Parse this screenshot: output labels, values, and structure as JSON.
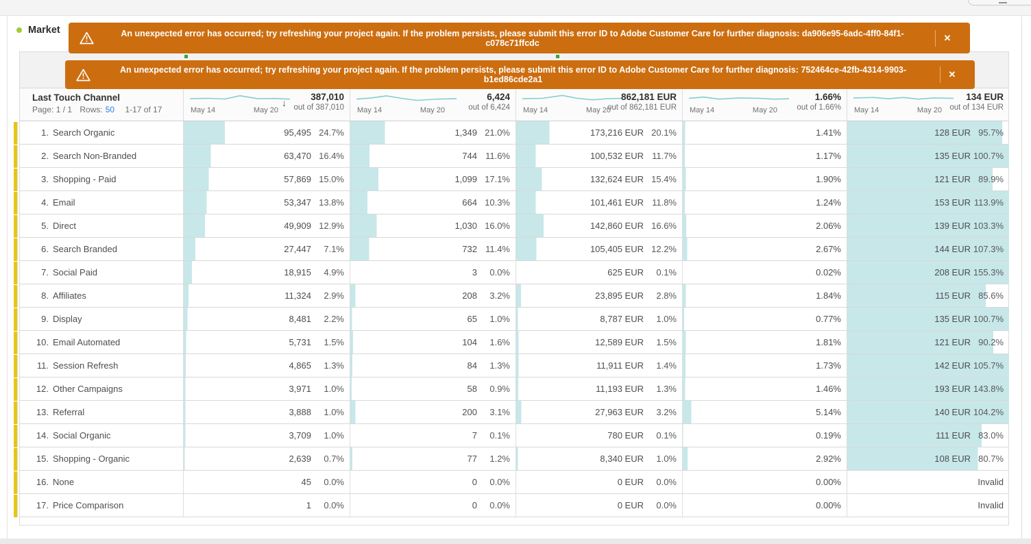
{
  "colors": {
    "banner_orange": "#cc6e10",
    "bar_teal": "#c7e7e9",
    "sparkline_teal": "#7fcfd4",
    "row_accent_yellow": "#e5c713",
    "link_blue": "#2680eb",
    "panel_dot_green": "#a4c93f"
  },
  "panel": {
    "title": "Market"
  },
  "banners": [
    {
      "message": "An unexpected error has occurred; try refreshing your project again. If the problem persists, please submit this error ID to Adobe Customer Care for further diagnosis: da906e95-6adc-4ff0-84f1-c078c71ffcdc",
      "close_label": "✕"
    },
    {
      "message": "An unexpected error has occurred; try refreshing your project again. If the problem persists, please submit this error ID to Adobe Customer Care for further diagnosis: 752464ce-42fb-4314-9903-b1ed86cde2a1",
      "close_label": "✕"
    }
  ],
  "table": {
    "dimension_header": {
      "title": "Last Touch Channel",
      "page_label": "Page: 1 / 1",
      "rows_label": "Rows:",
      "rows_value": "50",
      "range_label": "1-17 of 17"
    },
    "date_range": {
      "start": "May 14",
      "end": "May 20"
    },
    "columns": [
      {
        "total": "387,010",
        "out_of": "out of 387,010",
        "sorted": true,
        "spark": [
          [
            0,
            0.55
          ],
          [
            0.18,
            0.5
          ],
          [
            0.35,
            0.58
          ],
          [
            0.5,
            0.18
          ],
          [
            0.68,
            0.55
          ],
          [
            0.85,
            0.52
          ],
          [
            1,
            0.6
          ]
        ]
      },
      {
        "total": "6,424",
        "out_of": "out of 6,424",
        "sorted": false,
        "spark": [
          [
            0,
            0.6
          ],
          [
            0.15,
            0.45
          ],
          [
            0.3,
            0.2
          ],
          [
            0.45,
            0.5
          ],
          [
            0.6,
            0.75
          ],
          [
            0.8,
            0.6
          ],
          [
            1,
            0.55
          ]
        ]
      },
      {
        "total": "862,181 EUR",
        "out_of": "out of 862,181 EUR",
        "sorted": false,
        "spark": [
          [
            0,
            0.55
          ],
          [
            0.2,
            0.5
          ],
          [
            0.4,
            0.15
          ],
          [
            0.55,
            0.5
          ],
          [
            0.7,
            0.68
          ],
          [
            0.85,
            0.55
          ],
          [
            1,
            0.5
          ]
        ]
      },
      {
        "total": "1.66%",
        "out_of": "out of 1.66%",
        "sorted": false,
        "spark": [
          [
            0,
            0.5
          ],
          [
            0.15,
            0.35
          ],
          [
            0.3,
            0.6
          ],
          [
            0.5,
            0.45
          ],
          [
            0.7,
            0.5
          ],
          [
            0.85,
            0.6
          ],
          [
            1,
            0.55
          ]
        ]
      },
      {
        "total": "134 EUR",
        "out_of": "out of 134 EUR",
        "sorted": false,
        "spark": [
          [
            0,
            0.45
          ],
          [
            0.2,
            0.4
          ],
          [
            0.35,
            0.55
          ],
          [
            0.5,
            0.4
          ],
          [
            0.65,
            0.6
          ],
          [
            0.8,
            0.45
          ],
          [
            1,
            0.5
          ]
        ]
      }
    ],
    "rows": [
      {
        "rank": "1.",
        "name": "Search Organic",
        "cells": [
          [
            "95,495",
            "24.7%"
          ],
          [
            "1,349",
            "21.0%"
          ],
          [
            "173,216 EUR",
            "20.1%"
          ],
          [
            "1.41%",
            null
          ],
          [
            "128 EUR",
            "95.7%"
          ]
        ]
      },
      {
        "rank": "2.",
        "name": "Search Non-Branded",
        "cells": [
          [
            "63,470",
            "16.4%"
          ],
          [
            "744",
            "11.6%"
          ],
          [
            "100,532 EUR",
            "11.7%"
          ],
          [
            "1.17%",
            null
          ],
          [
            "135 EUR",
            "100.7%"
          ]
        ]
      },
      {
        "rank": "3.",
        "name": "Shopping - Paid",
        "cells": [
          [
            "57,869",
            "15.0%"
          ],
          [
            "1,099",
            "17.1%"
          ],
          [
            "132,624 EUR",
            "15.4%"
          ],
          [
            "1.90%",
            null
          ],
          [
            "121 EUR",
            "89.9%"
          ]
        ]
      },
      {
        "rank": "4.",
        "name": "Email",
        "cells": [
          [
            "53,347",
            "13.8%"
          ],
          [
            "664",
            "10.3%"
          ],
          [
            "101,461 EUR",
            "11.8%"
          ],
          [
            "1.24%",
            null
          ],
          [
            "153 EUR",
            "113.9%"
          ]
        ]
      },
      {
        "rank": "5.",
        "name": "Direct",
        "cells": [
          [
            "49,909",
            "12.9%"
          ],
          [
            "1,030",
            "16.0%"
          ],
          [
            "142,860 EUR",
            "16.6%"
          ],
          [
            "2.06%",
            null
          ],
          [
            "139 EUR",
            "103.3%"
          ]
        ]
      },
      {
        "rank": "6.",
        "name": "Search Branded",
        "cells": [
          [
            "27,447",
            "7.1%"
          ],
          [
            "732",
            "11.4%"
          ],
          [
            "105,405 EUR",
            "12.2%"
          ],
          [
            "2.67%",
            null
          ],
          [
            "144 EUR",
            "107.3%"
          ]
        ]
      },
      {
        "rank": "7.",
        "name": "Social Paid",
        "cells": [
          [
            "18,915",
            "4.9%"
          ],
          [
            "3",
            "0.0%"
          ],
          [
            "625 EUR",
            "0.1%"
          ],
          [
            "0.02%",
            null
          ],
          [
            "208 EUR",
            "155.3%"
          ]
        ]
      },
      {
        "rank": "8.",
        "name": "Affiliates",
        "cells": [
          [
            "11,324",
            "2.9%"
          ],
          [
            "208",
            "3.2%"
          ],
          [
            "23,895 EUR",
            "2.8%"
          ],
          [
            "1.84%",
            null
          ],
          [
            "115 EUR",
            "85.6%"
          ]
        ]
      },
      {
        "rank": "9.",
        "name": "Display",
        "cells": [
          [
            "8,481",
            "2.2%"
          ],
          [
            "65",
            "1.0%"
          ],
          [
            "8,787 EUR",
            "1.0%"
          ],
          [
            "0.77%",
            null
          ],
          [
            "135 EUR",
            "100.7%"
          ]
        ]
      },
      {
        "rank": "10.",
        "name": "Email Automated",
        "cells": [
          [
            "5,731",
            "1.5%"
          ],
          [
            "104",
            "1.6%"
          ],
          [
            "12,589 EUR",
            "1.5%"
          ],
          [
            "1.81%",
            null
          ],
          [
            "121 EUR",
            "90.2%"
          ]
        ]
      },
      {
        "rank": "11.",
        "name": "Session Refresh",
        "cells": [
          [
            "4,865",
            "1.3%"
          ],
          [
            "84",
            "1.3%"
          ],
          [
            "11,911 EUR",
            "1.4%"
          ],
          [
            "1.73%",
            null
          ],
          [
            "142 EUR",
            "105.7%"
          ]
        ]
      },
      {
        "rank": "12.",
        "name": "Other Campaigns",
        "cells": [
          [
            "3,971",
            "1.0%"
          ],
          [
            "58",
            "0.9%"
          ],
          [
            "11,193 EUR",
            "1.3%"
          ],
          [
            "1.46%",
            null
          ],
          [
            "193 EUR",
            "143.8%"
          ]
        ]
      },
      {
        "rank": "13.",
        "name": "Referral",
        "cells": [
          [
            "3,888",
            "1.0%"
          ],
          [
            "200",
            "3.1%"
          ],
          [
            "27,963 EUR",
            "3.2%"
          ],
          [
            "5.14%",
            null
          ],
          [
            "140 EUR",
            "104.2%"
          ]
        ]
      },
      {
        "rank": "14.",
        "name": "Social Organic",
        "cells": [
          [
            "3,709",
            "1.0%"
          ],
          [
            "7",
            "0.1%"
          ],
          [
            "780 EUR",
            "0.1%"
          ],
          [
            "0.19%",
            null
          ],
          [
            "111 EUR",
            "83.0%"
          ]
        ]
      },
      {
        "rank": "15.",
        "name": "Shopping - Organic",
        "cells": [
          [
            "2,639",
            "0.7%"
          ],
          [
            "77",
            "1.2%"
          ],
          [
            "8,340 EUR",
            "1.0%"
          ],
          [
            "2.92%",
            null
          ],
          [
            "108 EUR",
            "80.7%"
          ]
        ]
      },
      {
        "rank": "16.",
        "name": "None",
        "cells": [
          [
            "45",
            "0.0%"
          ],
          [
            "0",
            "0.0%"
          ],
          [
            "0 EUR",
            "0.0%"
          ],
          [
            "0.00%",
            null
          ],
          [
            "Invalid",
            null
          ]
        ]
      },
      {
        "rank": "17.",
        "name": "Price Comparison",
        "cells": [
          [
            "1",
            "0.0%"
          ],
          [
            "0",
            "0.0%"
          ],
          [
            "0 EUR",
            "0.0%"
          ],
          [
            "0.00%",
            null
          ],
          [
            "Invalid",
            null
          ]
        ]
      }
    ]
  }
}
